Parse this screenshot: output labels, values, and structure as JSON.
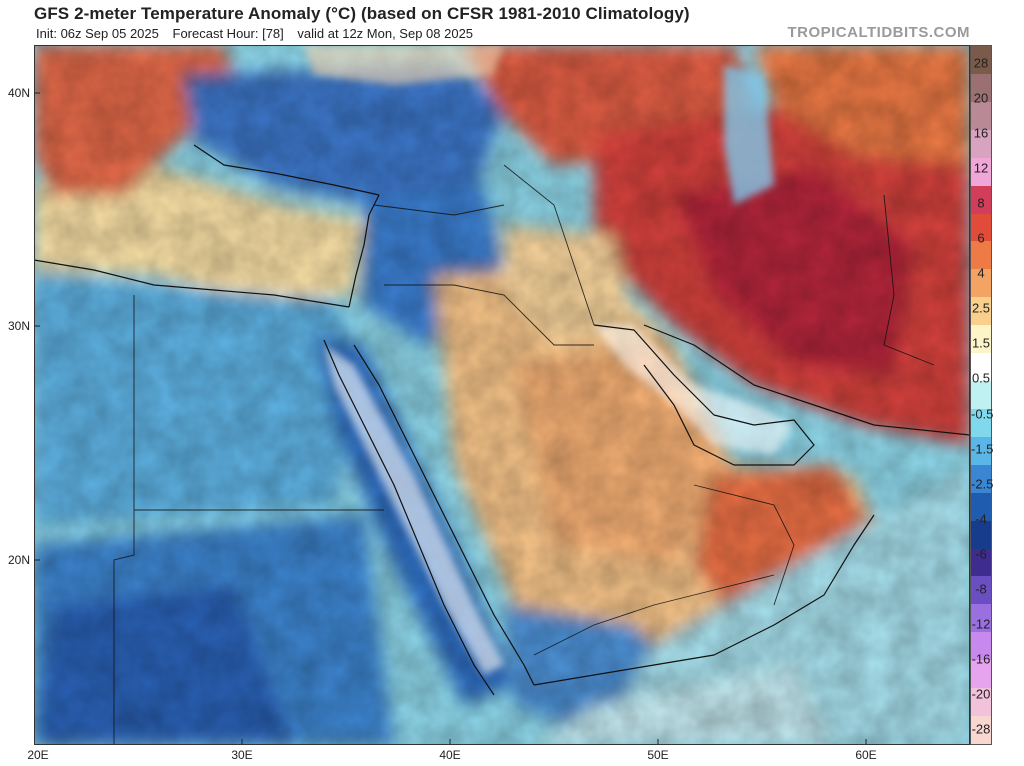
{
  "header": {
    "title": "GFS 2-meter Temperature Anomaly (°C) (based on CFSR 1981-2010 Climatology)",
    "init": "Init: 06z Sep 05 2025",
    "forecast_hour": "Forecast Hour: [78]",
    "valid": "valid at 12z Mon, Sep 08 2025",
    "brand": "TROPICALTIDBITS.COM"
  },
  "map": {
    "lat_labels": [
      "40N",
      "30N",
      "20N"
    ],
    "lon_labels": [
      "20E",
      "30E",
      "40E",
      "50E",
      "60E"
    ],
    "extent": {
      "lon_min": 20,
      "lon_max": 65,
      "lat_min": 12.5,
      "lat_max": 42
    }
  },
  "colorbar": {
    "labels": [
      "28",
      "20",
      "16",
      "12",
      "8",
      "6",
      "4",
      "2.5",
      "1.5",
      "0.5",
      "-0.5",
      "-1.5",
      "-2.5",
      "-4",
      "-6",
      "-8",
      "-12",
      "-16",
      "-20",
      "-28"
    ],
    "colors": [
      "#7a5a4a",
      "#9b7072",
      "#b98a96",
      "#d8a3bf",
      "#f0a6d6",
      "#d23d5a",
      "#e14b3a",
      "#ee7a45",
      "#f3a464",
      "#f9cf8c",
      "#fdf5c8",
      "#ffffff",
      "#bff0f2",
      "#7fd8ec",
      "#5bb6e8",
      "#3a86d2",
      "#1f5cb0",
      "#183c8c",
      "#3e2c8e",
      "#6a4fc2",
      "#9a6fe0",
      "#c889ef",
      "#e6a3ee",
      "#f1c2da",
      "#f7d7d0"
    ]
  }
}
